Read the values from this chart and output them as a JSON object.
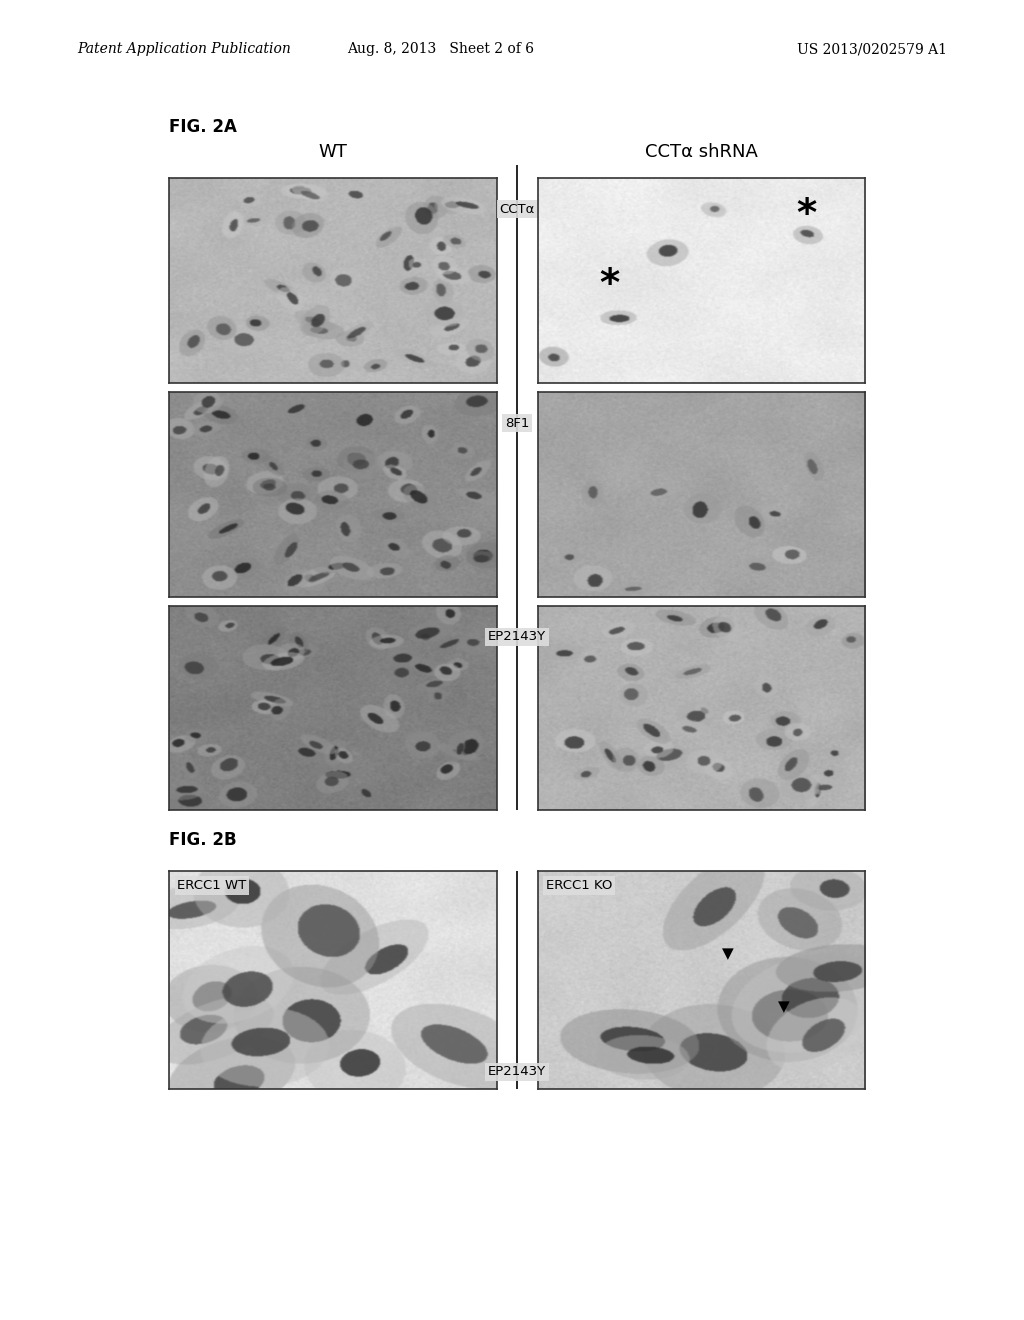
{
  "page_header_left": "Patent Application Publication",
  "page_header_center": "Aug. 8, 2013   Sheet 2 of 6",
  "page_header_right": "US 2013/0202579 A1",
  "fig2a_label": "FIG. 2A",
  "fig2b_label": "FIG. 2B",
  "col_left_label": "WT",
  "col_right_label": "CCTα shRNA",
  "row1_ab": "CCTα",
  "row2_ab": "8F1",
  "row3_ab": "EP2143Y",
  "fig2b_left_label": "ERCC1 WT",
  "fig2b_right_label": "ERCC1 KO",
  "fig2b_ab": "EP2143Y",
  "background_color": "#ffffff",
  "header_fontsize": 10,
  "fig_label_fontsize": 12
}
